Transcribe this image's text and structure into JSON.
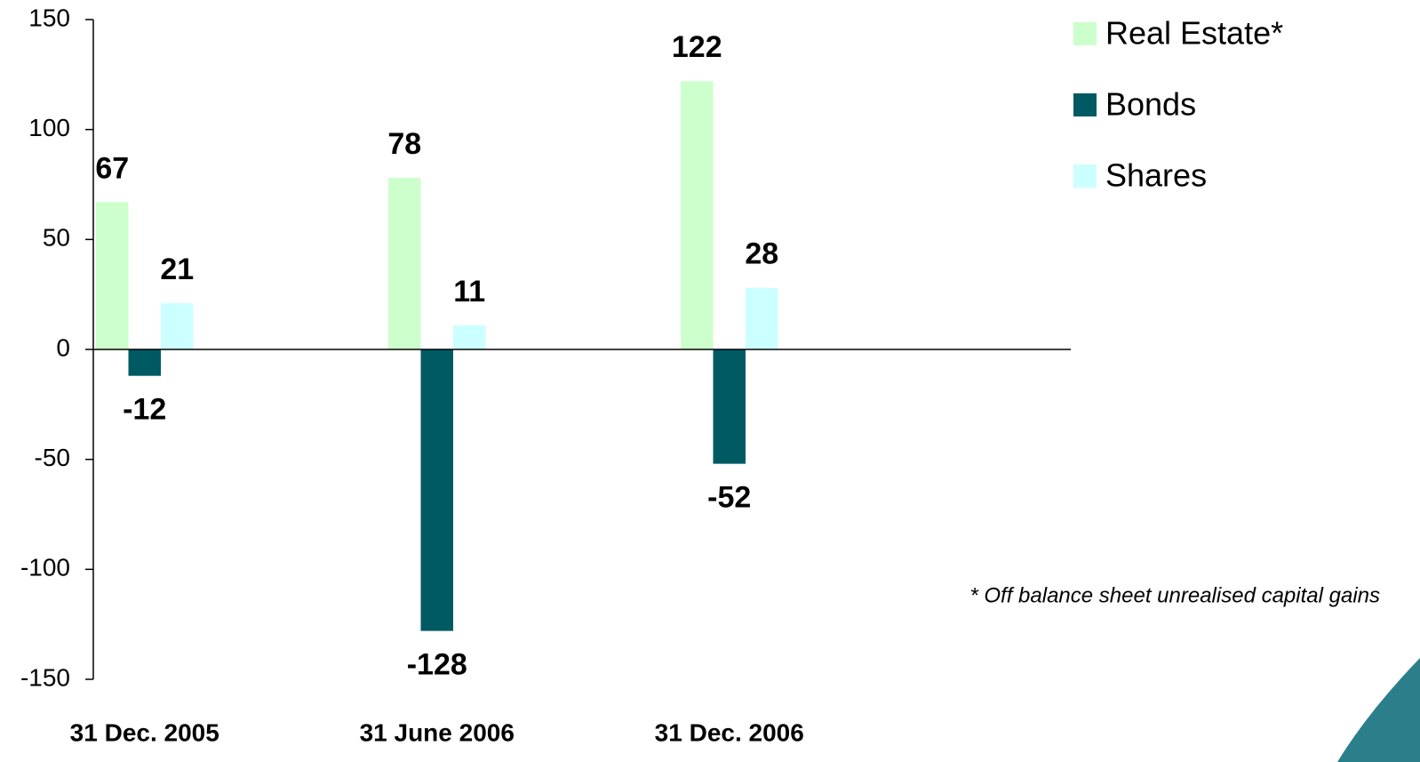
{
  "chart_data": {
    "type": "bar",
    "categories": [
      "31 Dec. 2005",
      "31 June 2006",
      "31 Dec. 2006"
    ],
    "series": [
      {
        "name": "Real Estate*",
        "color": "#ccffcc",
        "values": [
          67,
          78,
          122
        ]
      },
      {
        "name": "Bonds",
        "color": "#005a64",
        "values": [
          -12,
          -128,
          -52
        ]
      },
      {
        "name": "Shares",
        "color": "#ccffff",
        "values": [
          21,
          11,
          28
        ]
      }
    ],
    "ylim": [
      -150,
      150
    ],
    "yticks": [
      -150,
      -100,
      -50,
      0,
      50,
      100,
      150
    ],
    "legend": "top-right",
    "annotation": "* Off balance sheet unrealised capital gains"
  }
}
